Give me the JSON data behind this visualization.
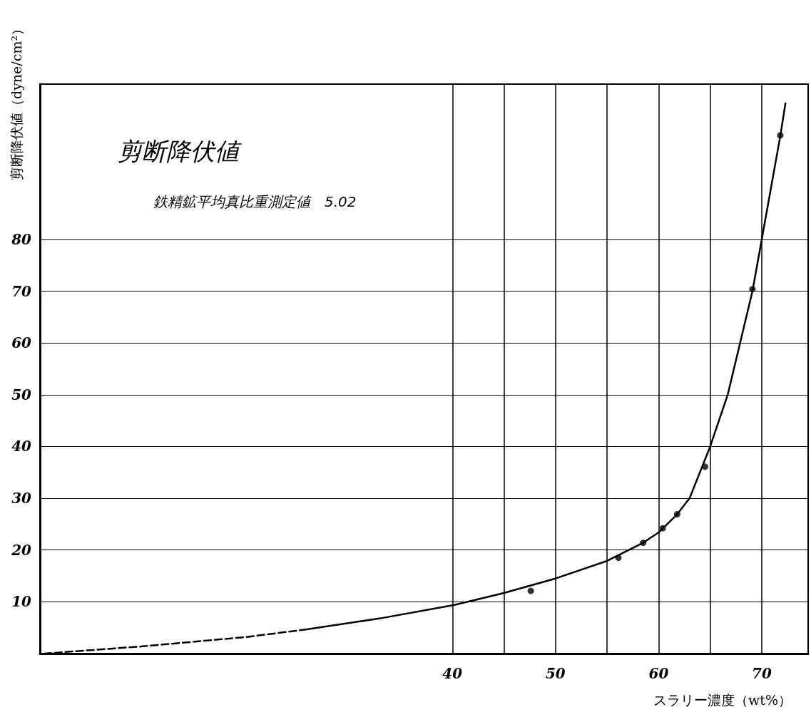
{
  "chart_data": {
    "type": "line",
    "title": "剪断降伏値",
    "subtitle": "鉄精鉱平均真比重測定値　5.02",
    "xlabel": "スラリー濃度（wt%）",
    "ylabel": "剪断降伏値（dyne/cm²）",
    "xlim": [
      0,
      74.5
    ],
    "ylim": [
      0,
      110
    ],
    "xticks": [
      40,
      {
        "value": 45,
        "label": null
      },
      50,
      {
        "value": 55,
        "label": null
      },
      60,
      {
        "value": 65,
        "label": null
      },
      70
    ],
    "yticks": [
      10,
      20,
      30,
      40,
      50,
      60,
      70,
      80
    ],
    "grid": true,
    "series": [
      {
        "color": "#000000",
        "line_style": "dashed",
        "marker": "none",
        "x": [
          0.4,
          10,
          20,
          26.0
        ],
        "values": [
          0,
          1.4,
          3.2,
          4.7
        ]
      },
      {
        "color": "#000000",
        "line_style": "solid",
        "marker": "none",
        "x": [
          26.0,
          33,
          40.2,
          45,
          50,
          55,
          58.5,
          60,
          61.8,
          63.0,
          65,
          66.7,
          67.9,
          69.1,
          70,
          71.8,
          72.3
        ],
        "values": [
          4.7,
          6.8,
          9.4,
          11.7,
          14.5,
          17.9,
          21.4,
          23.4,
          26.9,
          30,
          40,
          50,
          60,
          70,
          80,
          100,
          106.3
        ]
      },
      {
        "type": "scatter",
        "color": "#000000",
        "marker": "circle",
        "x": [
          47.6,
          56.1,
          58.5,
          60.4,
          61.8,
          64.5,
          69.1,
          71.8
        ],
        "values": [
          12.1,
          18.5,
          21.4,
          24.2,
          26.9,
          36.1,
          70.4,
          100.1
        ]
      }
    ]
  }
}
